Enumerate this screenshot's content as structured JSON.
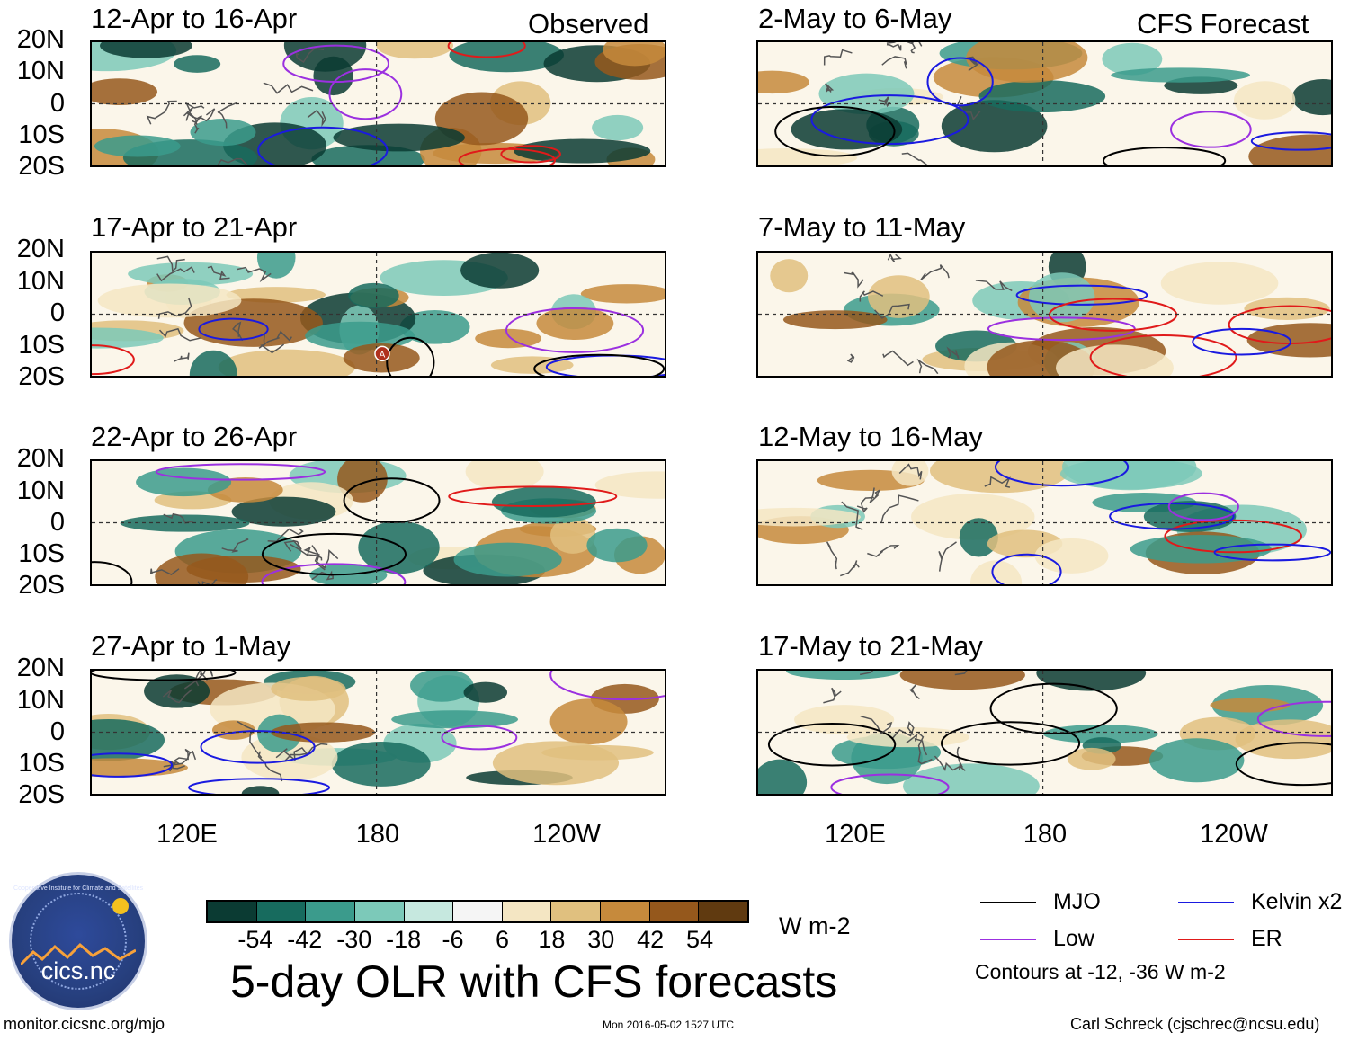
{
  "chart_data": {
    "type": "heatmap",
    "title": "5-day OLR with CFS forecasts",
    "column_headers": {
      "left": "Observed",
      "right": "CFS Forecast"
    },
    "y_ticks": [
      "20N",
      "10N",
      "0",
      "10S",
      "20S"
    ],
    "x_ticks": [
      "120E",
      "180",
      "120W"
    ],
    "panels": [
      {
        "title": "12-Apr to 16-Apr",
        "column": "Observed"
      },
      {
        "title": "17-Apr to 21-Apr",
        "column": "Observed"
      },
      {
        "title": "22-Apr to 26-Apr",
        "column": "Observed"
      },
      {
        "title": "27-Apr to 1-May",
        "column": "Observed"
      },
      {
        "title": "2-May to 6-May",
        "column": "CFS Forecast"
      },
      {
        "title": "7-May to 11-May",
        "column": "CFS Forecast"
      },
      {
        "title": "12-May to 16-May",
        "column": "CFS Forecast"
      },
      {
        "title": "17-May to 21-May",
        "column": "CFS Forecast"
      }
    ],
    "colorbar": {
      "labels": [
        "-54",
        "-42",
        "-30",
        "-18",
        "-6",
        "6",
        "18",
        "30",
        "42",
        "54"
      ],
      "colors": [
        "#0b3b33",
        "#176b5e",
        "#3b9b8c",
        "#7cc9b9",
        "#c6e8df",
        "#f5f5f5",
        "#f4e6c3",
        "#e0c07f",
        "#c68a3c",
        "#95581c",
        "#603a10"
      ],
      "units": "W m-2"
    },
    "legend": [
      {
        "label": "MJO",
        "color": "#000000"
      },
      {
        "label": "Kelvin x2",
        "color": "#1a1ae0"
      },
      {
        "label": "Low",
        "color": "#9b30e0"
      },
      {
        "label": "ER",
        "color": "#e01a1a"
      }
    ],
    "contour_note": "Contours at -12, -36 W m-2",
    "marker": "A"
  },
  "footer": {
    "url": "monitor.cicsnc.org/mjo",
    "timestamp": "Mon 2016-05-02 1527 UTC",
    "author": "Carl Schreck (cjschrec@ncsu.edu)"
  },
  "logo": {
    "name": "cics.nc",
    "arc_text": "Cooperative Institute for Climate and Satellites"
  }
}
